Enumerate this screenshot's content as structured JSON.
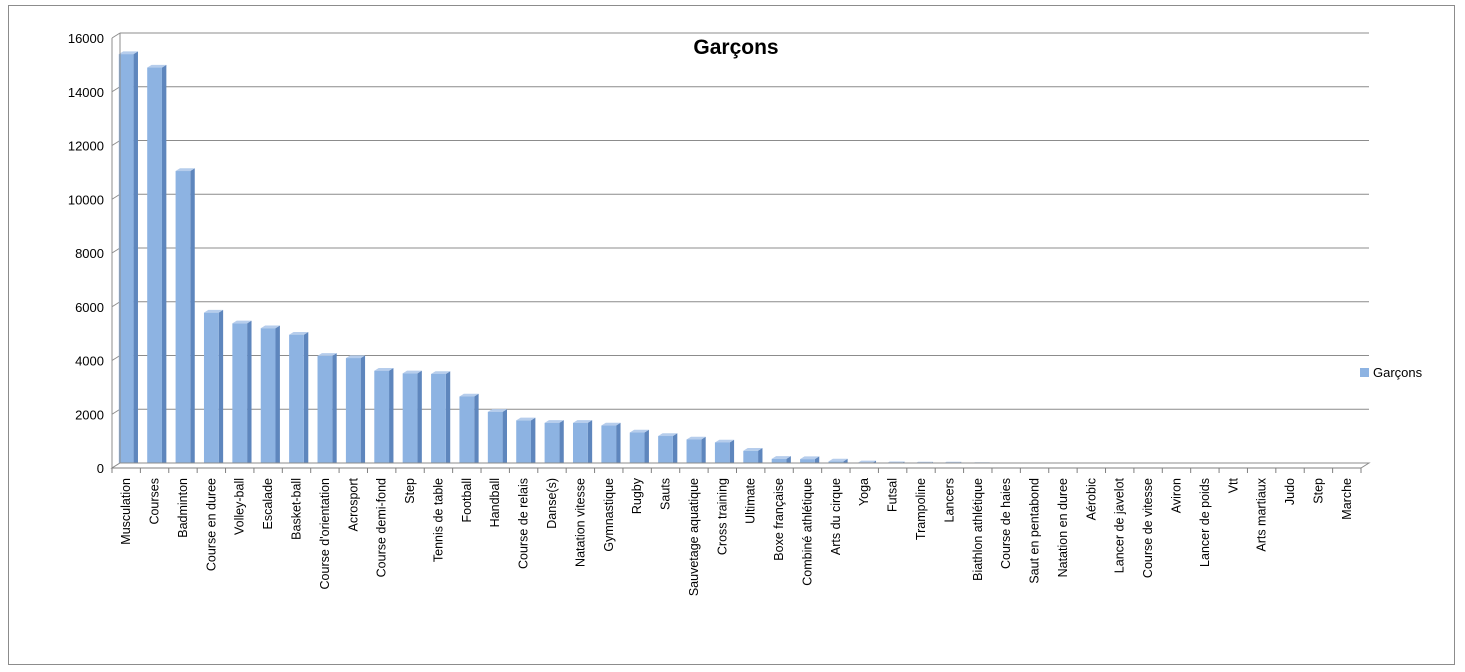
{
  "chart_data": {
    "type": "bar",
    "title": "Garçons",
    "xlabel": "",
    "ylabel": "",
    "ylim": [
      0,
      16000
    ],
    "yticks": [
      0,
      2000,
      4000,
      6000,
      8000,
      10000,
      12000,
      14000,
      16000
    ],
    "grid": true,
    "legend_position": "right",
    "bar_color": "#8db3e2",
    "categories": [
      "Musculation",
      "Courses",
      "Badminton",
      "Course en duree",
      "Volley-ball",
      "Escalade",
      "Basket-ball",
      "Course d'orientation",
      "Acrosport",
      "Course demi-fond",
      "Step",
      "Tennis de table",
      "Football",
      "Handball",
      "Course de relais",
      "Danse(s)",
      "Natation vitesse",
      "Gymnastique",
      "Rugby",
      "Sauts",
      "Sauvetage aquatique",
      "Cross training",
      "Ultimate",
      "Boxe française",
      "Combiné athlétique",
      "Arts du cirque",
      "Yoga",
      "Futsal",
      "Trampoline",
      "Lancers",
      "Biathlon athlétique",
      "Course de haies",
      "Saut en pentabond",
      "Natation en duree",
      "Aérobic",
      "Lancer de javelot",
      "Course de vitesse",
      "Aviron",
      "Lancer de poids",
      "Vtt",
      "Arts martiaux",
      "Judo",
      "Step",
      "Marche"
    ],
    "series": [
      {
        "name": "Garçons",
        "values": [
          15400,
          14900,
          11050,
          5780,
          5380,
          5200,
          4960,
          4170,
          4090,
          3620,
          3520,
          3500,
          2660,
          2090,
          1770,
          1680,
          1680,
          1580,
          1320,
          1190,
          1060,
          950,
          640,
          340,
          330,
          240,
          170,
          140,
          130,
          130,
          110,
          100,
          90,
          80,
          80,
          70,
          70,
          60,
          50,
          40,
          30,
          20,
          10,
          10
        ]
      }
    ]
  }
}
